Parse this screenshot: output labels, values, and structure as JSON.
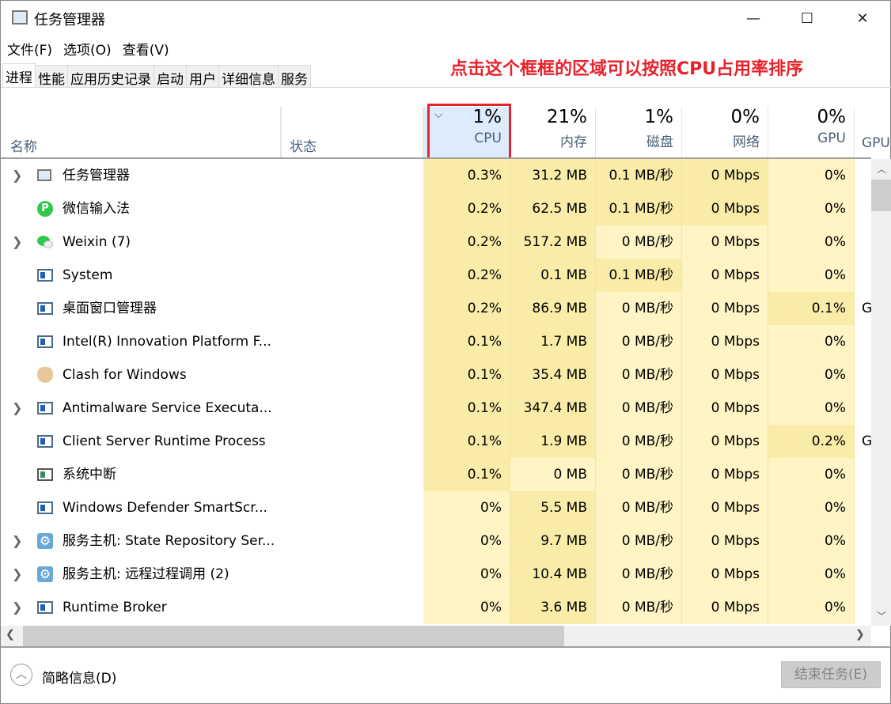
{
  "window": {
    "title": "任务管理器",
    "minimize": "—",
    "maximize": "☐",
    "close": "✕"
  },
  "menu": [
    "文件(F)",
    "选项(O)",
    "查看(V)"
  ],
  "tabs": [
    "进程",
    "性能",
    "应用历史记录",
    "启动",
    "用户",
    "详细信息",
    "服务"
  ],
  "annotation": "点击这个框框的区域可以按照CPU占用率排序",
  "columns": {
    "name": "名称",
    "status": "状态",
    "cpu": {
      "pct": "1%",
      "label": "CPU"
    },
    "memory": {
      "pct": "21%",
      "label": "内存"
    },
    "disk": {
      "pct": "1%",
      "label": "磁盘"
    },
    "network": {
      "pct": "0%",
      "label": "网络"
    },
    "gpu": {
      "pct": "0%",
      "label": "GPU"
    },
    "gpu_engine": {
      "label": "GPU"
    }
  },
  "rows": [
    {
      "name": "任务管理器",
      "exp": true,
      "icon": "task-manager",
      "cpu": "0.3%",
      "mem": "31.2 MB",
      "disk": "0.1 MB/秒",
      "net": "0 Mbps",
      "gpu": "0%",
      "eng": "",
      "h": "ddddll"
    },
    {
      "name": "微信输入法",
      "exp": false,
      "icon": "wechat-ime",
      "cpu": "0.2%",
      "mem": "62.5 MB",
      "disk": "0.1 MB/秒",
      "net": "0 Mbps",
      "gpu": "0%",
      "eng": "",
      "h": "ddddll"
    },
    {
      "name": "Weixin (7)",
      "exp": true,
      "icon": "weixin",
      "cpu": "0.2%",
      "mem": "517.2 MB",
      "disk": "0 MB/秒",
      "net": "0 Mbps",
      "gpu": "0%",
      "eng": "",
      "h": "ddlll"
    },
    {
      "name": "System",
      "exp": false,
      "icon": "system",
      "cpu": "0.2%",
      "mem": "0.1 MB",
      "disk": "0.1 MB/秒",
      "net": "0 Mbps",
      "gpu": "0%",
      "eng": "",
      "h": "dddll"
    },
    {
      "name": "桌面窗口管理器",
      "exp": false,
      "icon": "system",
      "cpu": "0.2%",
      "mem": "86.9 MB",
      "disk": "0 MB/秒",
      "net": "0 Mbps",
      "gpu": "0.1%",
      "eng": "G",
      "h": "ddlld"
    },
    {
      "name": "Intel(R) Innovation Platform F...",
      "exp": false,
      "icon": "system",
      "cpu": "0.1%",
      "mem": "1.7 MB",
      "disk": "0 MB/秒",
      "net": "0 Mbps",
      "gpu": "0%",
      "eng": "",
      "h": "ddlll"
    },
    {
      "name": "Clash for Windows",
      "exp": false,
      "icon": "clash",
      "cpu": "0.1%",
      "mem": "35.4 MB",
      "disk": "0 MB/秒",
      "net": "0 Mbps",
      "gpu": "0%",
      "eng": "",
      "h": "ddlll"
    },
    {
      "name": "Antimalware Service Executa...",
      "exp": true,
      "icon": "system",
      "cpu": "0.1%",
      "mem": "347.4 MB",
      "disk": "0 MB/秒",
      "net": "0 Mbps",
      "gpu": "0%",
      "eng": "",
      "h": "ddlll"
    },
    {
      "name": "Client Server Runtime Process",
      "exp": false,
      "icon": "system",
      "cpu": "0.1%",
      "mem": "1.9 MB",
      "disk": "0 MB/秒",
      "net": "0 Mbps",
      "gpu": "0.2%",
      "eng": "G",
      "h": "ddlld"
    },
    {
      "name": "系统中断",
      "exp": false,
      "icon": "interrupt",
      "cpu": "0.1%",
      "mem": "0 MB",
      "disk": "0 MB/秒",
      "net": "0 Mbps",
      "gpu": "0%",
      "eng": "",
      "h": "dllll"
    },
    {
      "name": "Windows Defender SmartScr...",
      "exp": false,
      "icon": "system",
      "cpu": "0%",
      "mem": "5.5 MB",
      "disk": "0 MB/秒",
      "net": "0 Mbps",
      "gpu": "0%",
      "eng": "",
      "h": "ldlll"
    },
    {
      "name": "服务主机: State Repository Ser...",
      "exp": true,
      "icon": "gear",
      "cpu": "0%",
      "mem": "9.7 MB",
      "disk": "0 MB/秒",
      "net": "0 Mbps",
      "gpu": "0%",
      "eng": "",
      "h": "ldlll"
    },
    {
      "name": "服务主机: 远程过程调用 (2)",
      "exp": true,
      "icon": "gear",
      "cpu": "0%",
      "mem": "10.4 MB",
      "disk": "0 MB/秒",
      "net": "0 Mbps",
      "gpu": "0%",
      "eng": "",
      "h": "ldlll"
    },
    {
      "name": "Runtime Broker",
      "exp": true,
      "icon": "system",
      "cpu": "0%",
      "mem": "3.6 MB",
      "disk": "0 MB/秒",
      "net": "0 Mbps",
      "gpu": "0%",
      "eng": "",
      "h": "ldlll"
    }
  ],
  "footer": {
    "fewer_details": "简略信息(D)",
    "end_task": "结束任务(E)"
  },
  "colors": {
    "heat_high": "#f9eca8",
    "heat_low": "#fff4c4",
    "sort_header": "#dcecfc",
    "annotation": "#e8222b"
  }
}
